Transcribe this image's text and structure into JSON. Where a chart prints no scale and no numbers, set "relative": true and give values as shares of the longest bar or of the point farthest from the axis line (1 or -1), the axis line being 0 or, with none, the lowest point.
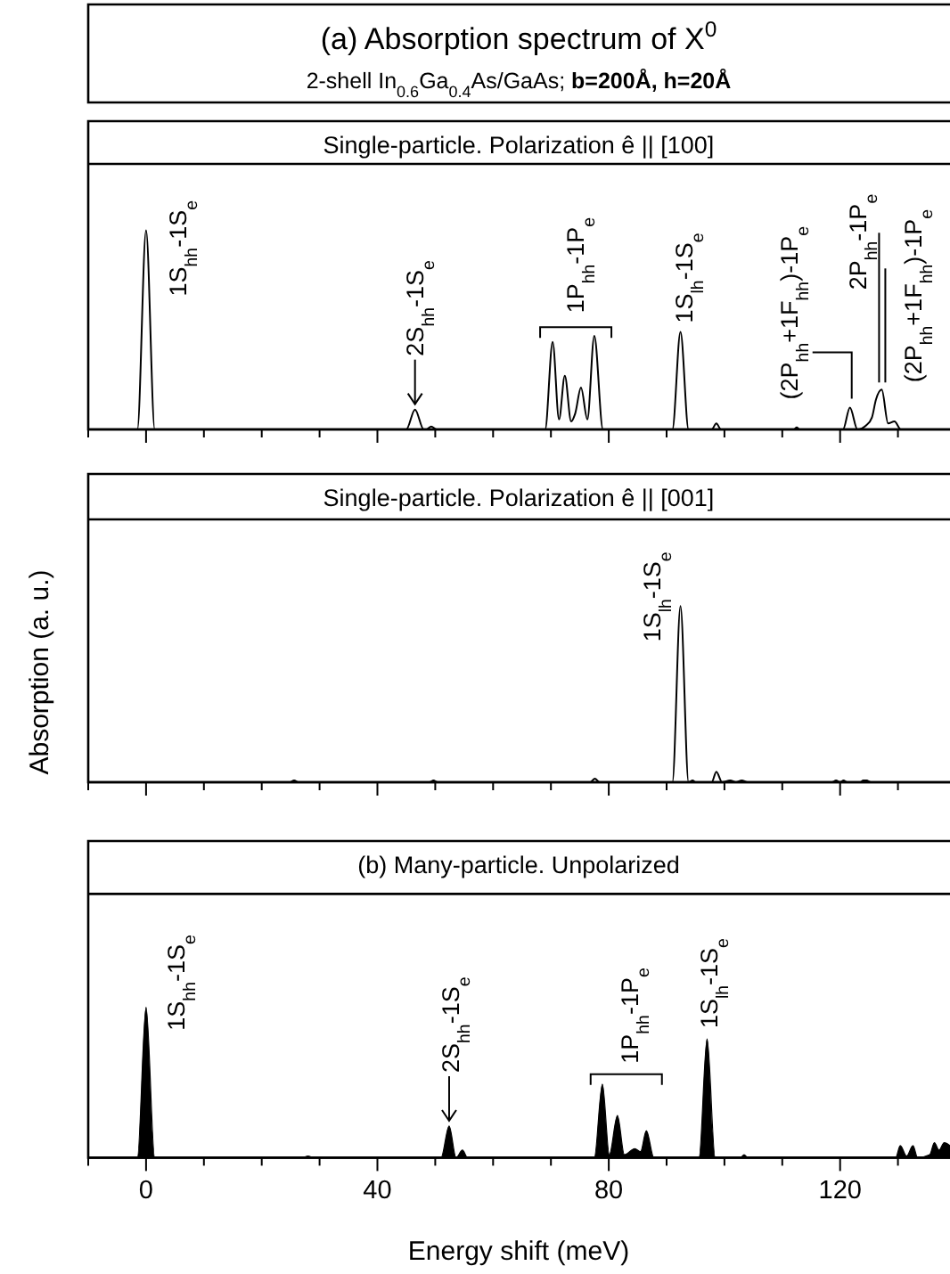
{
  "chart_data": [
    {
      "type": "line",
      "title": "(a) Absorption spectrum of X$^{0}$",
      "subtitle": "2-shell In$_{0.6}$Ga$_{0.4}$As/GaAs; b=200Å, h=20Å",
      "relative": true,
      "color": "#000000",
      "tick_labels": false,
      "xlim": [
        -10,
        139
      ],
      "xticks": [
        {
          "value": -10,
          "label": null
        },
        0,
        {
          "value": 10,
          "label": null
        },
        {
          "value": 20,
          "label": null
        },
        {
          "value": 30,
          "label": null
        },
        40,
        {
          "value": 50,
          "label": null
        },
        {
          "value": 60,
          "label": null
        },
        {
          "value": 70,
          "label": null
        },
        80,
        {
          "value": 90,
          "label": null
        },
        {
          "value": 100,
          "label": null
        },
        {
          "value": 110,
          "label": null
        },
        120,
        {
          "value": 130,
          "label": null
        }
      ],
      "x": [
        -10,
        -1.5,
        0,
        1.5,
        45,
        46.5,
        48,
        48.5,
        49.3,
        50.2,
        69,
        70.3,
        71.4,
        72.4,
        73.5,
        74.2,
        75.2,
        76.3,
        77.5,
        79,
        91,
        92.4,
        93.8,
        97.8,
        98.6,
        99.4,
        112,
        112.5,
        113,
        120.5,
        121.7,
        123,
        124.5,
        125.5,
        126.2,
        127.2,
        128.3,
        129.4,
        130.5,
        139
      ],
      "values": [
        0,
        0,
        1,
        0,
        0,
        0.1,
        0,
        0,
        0.015,
        0,
        0,
        0.44,
        0.05,
        0.27,
        0.04,
        0.08,
        0.21,
        0.05,
        0.47,
        0,
        0,
        0.49,
        0,
        0,
        0.03,
        0,
        0,
        0.01,
        0,
        0,
        0.11,
        0,
        0.02,
        0.06,
        0.15,
        0.2,
        0.03,
        0.04,
        0,
        0
      ],
      "annotations": [
        "Single-particle. Polarization ê || [100]",
        {
          "text": "1S$_{hh}$-1S$_{e}$",
          "x": 0,
          "y": 1
        },
        {
          "text": "2S$_{hh}$-1S$_{e}$",
          "x": 46.5,
          "y": 0.1
        },
        {
          "text": "1P$_{hh}$-1P$_{e}$",
          "x": 77.5,
          "y": 0.47
        },
        {
          "text": "1S$_{lh}$-1S$_{e}$",
          "x": 92.4,
          "y": 0.49
        },
        {
          "text": "(2P$_{hh}$+1F$_{hh}$)-1P$_{e}$",
          "x": 121.7,
          "y": 0.11
        },
        {
          "text": "2P$_{hh}$-1P$_{e}$",
          "x": 127.2,
          "y": 0.2
        },
        {
          "text": "(2P$_{hh}$+1F$_{hh}$)-1P$_{e}$",
          "x": 127.2,
          "y": 0.2
        }
      ]
    },
    {
      "type": "line",
      "title": "Single-particle. Polarization ê || [001]",
      "relative": true,
      "color": "#000000",
      "tick_labels": false,
      "ylabel": "Absorption  (a. u.)",
      "xlim": [
        -10,
        139
      ],
      "xticks": [
        {
          "value": -10,
          "label": null
        },
        0,
        {
          "value": 10,
          "label": null
        },
        {
          "value": 20,
          "label": null
        },
        {
          "value": 30,
          "label": null
        },
        40,
        {
          "value": 50,
          "label": null
        },
        {
          "value": 60,
          "label": null
        },
        {
          "value": 70,
          "label": null
        },
        80,
        {
          "value": 90,
          "label": null
        },
        {
          "value": 100,
          "label": null
        },
        {
          "value": 110,
          "label": null
        },
        120,
        {
          "value": 130,
          "label": null
        }
      ],
      "x": [
        -10,
        24.8,
        25.6,
        26.4,
        49,
        49.7,
        50.4,
        76.8,
        77.6,
        78.4,
        91,
        92.4,
        93.8,
        94.5,
        95,
        97.8,
        98.6,
        99.6,
        101,
        102,
        103,
        104,
        118.6,
        119.3,
        120,
        120.6,
        121.2,
        123.5,
        124,
        124.6,
        125.3,
        139
      ],
      "values": [
        0,
        0,
        0.01,
        0,
        0,
        0.01,
        0,
        0,
        0.02,
        0,
        0,
        1,
        0,
        0.01,
        0,
        0,
        0.06,
        0,
        0.01,
        0,
        0.01,
        0,
        0,
        0.01,
        0,
        0.01,
        0,
        0,
        0.01,
        0.01,
        0,
        0
      ],
      "annotations": [
        {
          "text": "1S$_{lh}$-1S$_{e}$",
          "x": 92.4,
          "y": 1
        }
      ]
    },
    {
      "type": "area",
      "title": "(b) Many-particle. Unpolarized",
      "relative": true,
      "color": "#000000",
      "xlabel": "Energy shift (meV)",
      "xlim": [
        -10,
        139
      ],
      "xticks": [
        {
          "value": -10,
          "label": null
        },
        0,
        {
          "value": 10,
          "label": null
        },
        {
          "value": 20,
          "label": null
        },
        {
          "value": 30,
          "label": null
        },
        40,
        {
          "value": 50,
          "label": null
        },
        {
          "value": 60,
          "label": null
        },
        {
          "value": 70,
          "label": null
        },
        80,
        {
          "value": 90,
          "label": null
        },
        {
          "value": 100,
          "label": null
        },
        {
          "value": 110,
          "label": null
        },
        120,
        {
          "value": 130,
          "label": null
        }
      ],
      "x": [
        -10,
        -1.5,
        0,
        1.5,
        27,
        28,
        29,
        51,
        52.4,
        53.6,
        54.7,
        55.6,
        77.5,
        78.9,
        80.1,
        81.5,
        82.7,
        84.5,
        85.5,
        86.5,
        87.8,
        95.6,
        97,
        98.4,
        102.8,
        103.4,
        104,
        129.6,
        130.4,
        131.5,
        132.6,
        133.4,
        135.5,
        136.3,
        137.1,
        138,
        139
      ],
      "values": [
        0,
        0,
        1,
        0,
        0,
        0.01,
        0,
        0,
        0.21,
        0,
        0.05,
        0,
        0,
        0.49,
        0.02,
        0.28,
        0.02,
        0.06,
        0.04,
        0.18,
        0,
        0,
        0.79,
        0,
        0,
        0.02,
        0,
        0,
        0.08,
        0.01,
        0.08,
        0,
        0.02,
        0.1,
        0.05,
        0.1,
        0.08
      ],
      "annotations": [
        {
          "text": "1S$_{hh}$-1S$_{e}$",
          "x": 0,
          "y": 1
        },
        {
          "text": "2S$_{hh}$-1S$_{e}$",
          "x": 52.4,
          "y": 0.21
        },
        {
          "text": "1P$_{hh}$-1P$_{e}$",
          "x": 78.9,
          "y": 0.49
        },
        {
          "text": "1S$_{lh}$-1S$_{e}$",
          "x": 97,
          "y": 0.79
        }
      ]
    }
  ]
}
